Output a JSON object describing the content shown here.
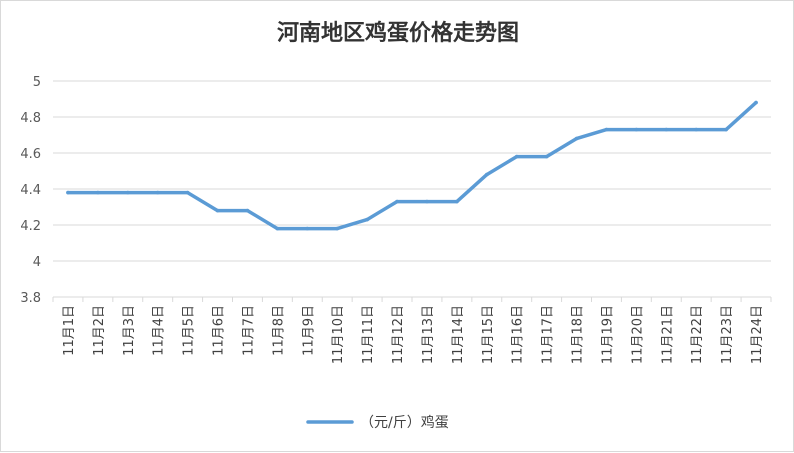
{
  "chart_data": {
    "type": "line",
    "title": "河南地区鸡蛋价格走势图",
    "xlabel": "",
    "ylabel": "",
    "categories": [
      "11月1日",
      "11月2日",
      "11月3日",
      "11月4日",
      "11月5日",
      "11月6日",
      "11月7日",
      "11月8日",
      "11月9日",
      "11月10日",
      "11月11日",
      "11月12日",
      "11月13日",
      "11月14日",
      "11月15日",
      "11月16日",
      "11月17日",
      "11月18日",
      "11月19日",
      "11月20日",
      "11月21日",
      "11月22日",
      "11月23日",
      "11月24日"
    ],
    "series": [
      {
        "name": "（元/斤）鸡蛋",
        "color": "#5b9bd5",
        "values": [
          4.38,
          4.38,
          4.38,
          4.38,
          4.38,
          4.28,
          4.28,
          4.18,
          4.18,
          4.18,
          4.23,
          4.33,
          4.33,
          4.33,
          4.48,
          4.58,
          4.58,
          4.68,
          4.73,
          4.73,
          4.73,
          4.73,
          4.73,
          4.88
        ]
      }
    ],
    "ylim": [
      3.8,
      5
    ],
    "yticks": [
      "3.8",
      "4",
      "4.2",
      "4.4",
      "4.6",
      "4.8",
      "5"
    ],
    "grid": true,
    "legend": "bottom"
  }
}
